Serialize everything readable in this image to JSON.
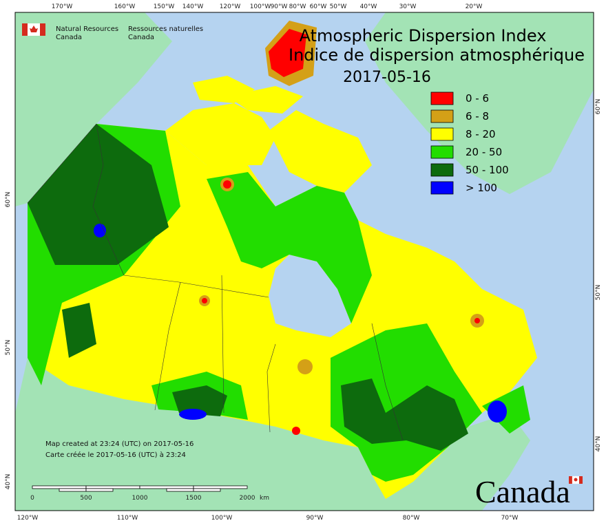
{
  "header": {
    "agency_en_1": "Natural Resources",
    "agency_en_2": "Canada",
    "agency_fr_1": "Ressources naturelles",
    "agency_fr_2": "Canada"
  },
  "title": {
    "line_en": "Atmospheric Dispersion Index",
    "line_fr": "Indice de dispersion atmosphérique",
    "date": "2017-05-16"
  },
  "legend": [
    {
      "label": "0 - 6",
      "color": "#ff0000"
    },
    {
      "label": "6 - 8",
      "color": "#d4a017"
    },
    {
      "label": "8 - 20",
      "color": "#ffff00"
    },
    {
      "label": "20 - 50",
      "color": "#22dd00"
    },
    {
      "label": "50 - 100",
      "color": "#0d6b0d"
    },
    {
      "label": "> 100",
      "color": "#0000ff"
    }
  ],
  "graticule": {
    "top": [
      "170°W",
      "160°W",
      "150°W",
      "140°W",
      "120°W",
      "100°W",
      "90°W",
      "80°W",
      "60°W",
      "50°W",
      "40°W",
      "30°W",
      "20°W"
    ],
    "bottom": [
      "120°W",
      "110°W",
      "100°W",
      "90°W",
      "80°W",
      "70°W"
    ],
    "left": [
      "60°N",
      "50°N",
      "40°N"
    ],
    "right": [
      "60°N",
      "50°N",
      "40°N"
    ]
  },
  "notes": {
    "created_en": "Map created at 23:24 (UTC) on 2017-05-16",
    "created_fr": "Carte créée le 2017-05-16 (UTC) à 23:24"
  },
  "scale_bar": {
    "labels": [
      "0",
      "500",
      "1000",
      "1500",
      "2000"
    ],
    "unit": "km"
  },
  "wordmark": "Canada"
}
